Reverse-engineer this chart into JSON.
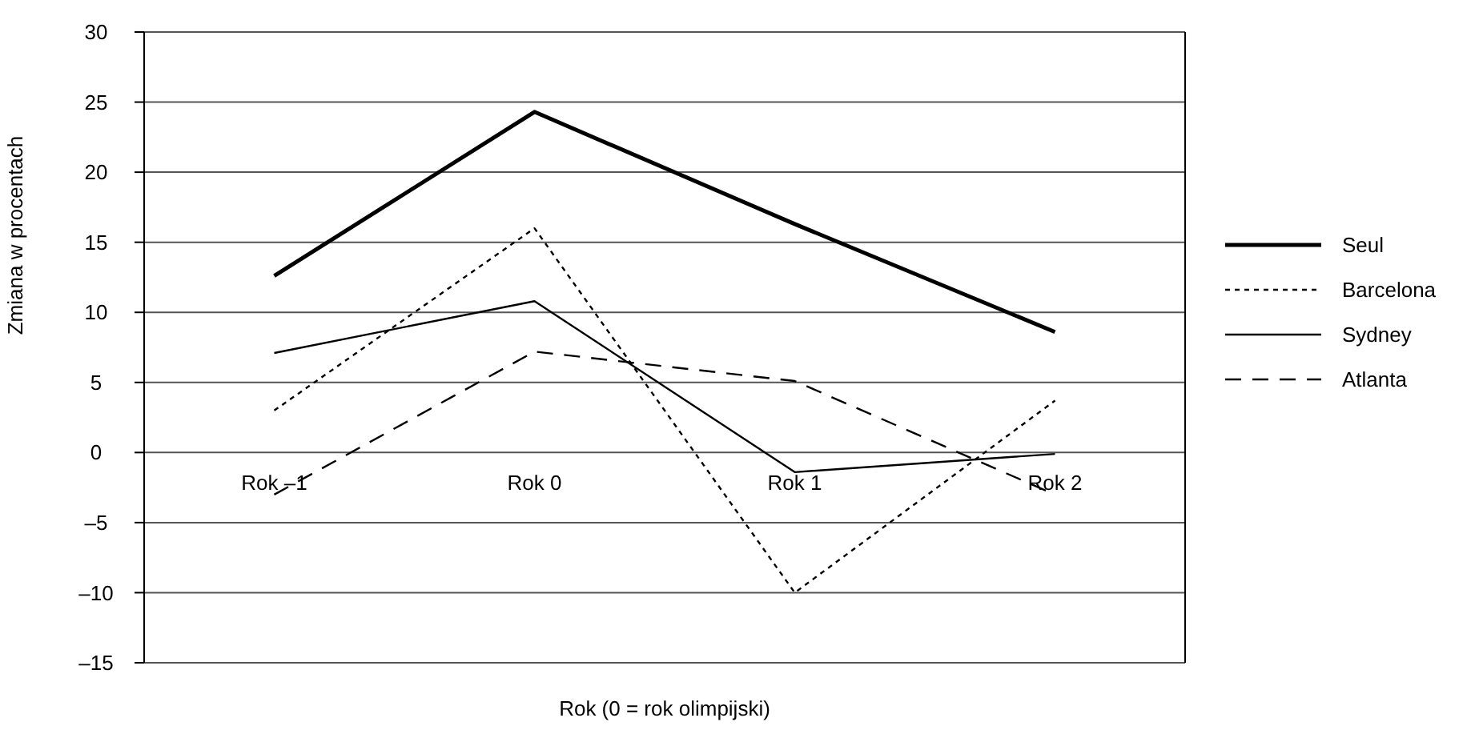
{
  "chart_data": {
    "type": "line",
    "xlabel": "Rok (0 = rok olimpijski)",
    "ylabel": "Zmiana w procentach",
    "categories": [
      "Rok –1",
      "Rok 0",
      "Rok 1",
      "Rok 2"
    ],
    "series": [
      {
        "name": "Seul",
        "color": "#000000",
        "line_style": "solid",
        "values": [
          12.6,
          24.3,
          16.3,
          8.6
        ]
      },
      {
        "name": "Barcelona",
        "color": "#000000",
        "line_style": "dotted",
        "values": [
          3.0,
          16.0,
          -10.0,
          3.7
        ]
      },
      {
        "name": "Sydney",
        "color": "#000000",
        "line_style": "solid",
        "values": [
          7.1,
          10.8,
          -1.4,
          -0.1
        ]
      },
      {
        "name": "Atlanta",
        "color": "#000000",
        "line_style": "dashed",
        "values": [
          -3,
          7.2,
          5.1,
          -3
        ]
      }
    ],
    "ylim": [
      -15,
      30
    ],
    "yticks": [
      {
        "value": -15,
        "label": "–15"
      },
      {
        "value": -10,
        "label": "–10"
      },
      {
        "value": -5,
        "label": "–5"
      },
      0,
      5,
      10,
      15,
      20,
      25,
      30
    ],
    "grid": "y",
    "legend": "right",
    "marker": "none"
  }
}
